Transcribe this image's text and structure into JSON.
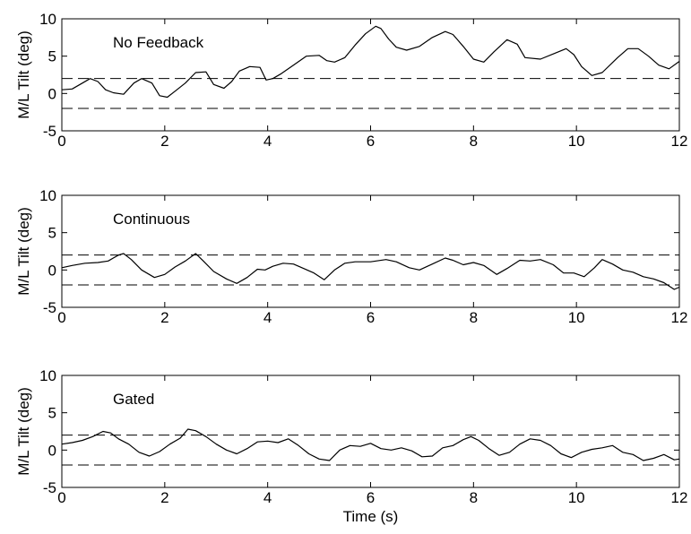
{
  "chart_data": [
    {
      "type": "line",
      "title": "No Feedback",
      "xlabel": "",
      "ylabel": "M/L Tilt (deg)",
      "xlim": [
        0,
        12
      ],
      "ylim": [
        -5,
        10
      ],
      "xticks": [
        "0",
        "2",
        "4",
        "6",
        "8",
        "10",
        "12"
      ],
      "yticks": [
        "-5",
        "0",
        "5",
        "10"
      ],
      "threshold_lines": [
        2,
        -2
      ],
      "series": [
        {
          "x": [
            0,
            0.2,
            0.4,
            0.55,
            0.7,
            0.85,
            1.0,
            1.2,
            1.4,
            1.55,
            1.75,
            1.9,
            2.05,
            2.2,
            2.4,
            2.6,
            2.8,
            2.95,
            3.15,
            3.3,
            3.45,
            3.65,
            3.85,
            3.97,
            4.1,
            4.25,
            4.5,
            4.75,
            5.0,
            5.15,
            5.3,
            5.5,
            5.7,
            5.9,
            6.1,
            6.2,
            6.35,
            6.5,
            6.7,
            6.95,
            7.2,
            7.45,
            7.6,
            7.8,
            8.0,
            8.2,
            8.4,
            8.65,
            8.85,
            9.0,
            9.3,
            9.55,
            9.8,
            9.95,
            10.1,
            10.3,
            10.5,
            10.8,
            11.0,
            11.2,
            11.4,
            11.6,
            11.8,
            12.0
          ],
          "y": [
            0.5,
            0.6,
            1.4,
            2.0,
            1.6,
            0.5,
            0.1,
            -0.1,
            1.4,
            2.0,
            1.4,
            -0.3,
            -0.5,
            0.3,
            1.4,
            2.8,
            2.9,
            1.2,
            0.7,
            1.6,
            3.0,
            3.6,
            3.5,
            1.8,
            2.0,
            2.6,
            3.8,
            5.0,
            5.1,
            4.4,
            4.2,
            4.8,
            6.5,
            8.0,
            9.0,
            8.7,
            7.3,
            6.2,
            5.8,
            6.3,
            7.5,
            8.3,
            7.9,
            6.3,
            4.6,
            4.2,
            5.6,
            7.2,
            6.6,
            4.8,
            4.6,
            5.3,
            6.0,
            5.2,
            3.6,
            2.4,
            2.8,
            4.8,
            6.0,
            6.0,
            5.0,
            3.8,
            3.3,
            4.3
          ]
        }
      ]
    },
    {
      "type": "line",
      "title": "Continuous",
      "xlabel": "",
      "ylabel": "M/L Tilt (deg)",
      "xlim": [
        0,
        12
      ],
      "ylim": [
        -5,
        10
      ],
      "xticks": [
        "0",
        "2",
        "4",
        "6",
        "8",
        "10",
        "12"
      ],
      "yticks": [
        "-5",
        "0",
        "5",
        "10"
      ],
      "threshold_lines": [
        2,
        -2
      ],
      "series": [
        {
          "x": [
            0,
            0.2,
            0.45,
            0.7,
            0.9,
            1.1,
            1.2,
            1.35,
            1.55,
            1.8,
            2.0,
            2.2,
            2.4,
            2.6,
            2.75,
            2.95,
            3.2,
            3.4,
            3.6,
            3.8,
            3.95,
            4.1,
            4.3,
            4.5,
            4.7,
            4.9,
            5.1,
            5.3,
            5.5,
            5.7,
            6.0,
            6.3,
            6.5,
            6.75,
            6.95,
            7.2,
            7.45,
            7.6,
            7.8,
            8.0,
            8.2,
            8.45,
            8.65,
            8.9,
            9.1,
            9.3,
            9.55,
            9.75,
            9.95,
            10.15,
            10.35,
            10.5,
            10.7,
            10.9,
            11.1,
            11.3,
            11.5,
            11.7,
            11.9,
            12.0
          ],
          "y": [
            0.3,
            0.6,
            0.9,
            1.0,
            1.2,
            2.0,
            2.2,
            1.4,
            0.0,
            -1.0,
            -0.6,
            0.4,
            1.2,
            2.2,
            1.2,
            -0.2,
            -1.2,
            -1.8,
            -1.0,
            0.1,
            0.0,
            0.5,
            0.9,
            0.8,
            0.2,
            -0.4,
            -1.3,
            0.0,
            0.9,
            1.1,
            1.1,
            1.4,
            1.1,
            0.3,
            0.0,
            0.8,
            1.6,
            1.3,
            0.7,
            1.0,
            0.6,
            -0.6,
            0.2,
            1.3,
            1.2,
            1.4,
            0.7,
            -0.4,
            -0.4,
            -0.9,
            0.3,
            1.4,
            0.8,
            0.0,
            -0.3,
            -0.9,
            -1.2,
            -1.7,
            -2.6,
            -2.3
          ]
        }
      ]
    },
    {
      "type": "line",
      "title": "Gated",
      "xlabel": "Time (s)",
      "ylabel": "M/L Tilt (deg)",
      "xlim": [
        0,
        12
      ],
      "ylim": [
        -5,
        10
      ],
      "xticks": [
        "0",
        "2",
        "4",
        "6",
        "8",
        "10",
        "12"
      ],
      "yticks": [
        "-5",
        "0",
        "5",
        "10"
      ],
      "threshold_lines": [
        2,
        -2
      ],
      "series": [
        {
          "x": [
            0,
            0.2,
            0.4,
            0.6,
            0.8,
            0.95,
            1.1,
            1.3,
            1.5,
            1.7,
            1.9,
            2.1,
            2.3,
            2.45,
            2.6,
            2.8,
            3.0,
            3.2,
            3.4,
            3.6,
            3.8,
            4.0,
            4.2,
            4.4,
            4.6,
            4.8,
            5.0,
            5.2,
            5.4,
            5.6,
            5.8,
            6.0,
            6.2,
            6.4,
            6.6,
            6.8,
            7.0,
            7.2,
            7.4,
            7.6,
            7.8,
            7.95,
            8.1,
            8.3,
            8.5,
            8.7,
            8.9,
            9.1,
            9.3,
            9.5,
            9.7,
            9.9,
            10.1,
            10.3,
            10.5,
            10.7,
            10.9,
            11.1,
            11.3,
            11.5,
            11.7,
            11.9,
            12.0
          ],
          "y": [
            0.8,
            1.0,
            1.3,
            1.8,
            2.5,
            2.3,
            1.5,
            0.8,
            -0.3,
            -0.8,
            -0.2,
            0.8,
            1.6,
            2.8,
            2.6,
            1.8,
            0.8,
            0.0,
            -0.5,
            0.2,
            1.1,
            1.2,
            1.0,
            1.5,
            0.6,
            -0.5,
            -1.2,
            -1.4,
            0.0,
            0.6,
            0.5,
            0.9,
            0.2,
            0.0,
            0.3,
            -0.1,
            -0.9,
            -0.8,
            0.3,
            0.6,
            1.4,
            1.8,
            1.3,
            0.2,
            -0.7,
            -0.3,
            0.8,
            1.5,
            1.3,
            0.6,
            -0.5,
            -1.0,
            -0.3,
            0.1,
            0.3,
            0.6,
            -0.3,
            -0.6,
            -1.4,
            -1.1,
            -0.6,
            -1.3,
            -1.2
          ]
        }
      ]
    }
  ]
}
